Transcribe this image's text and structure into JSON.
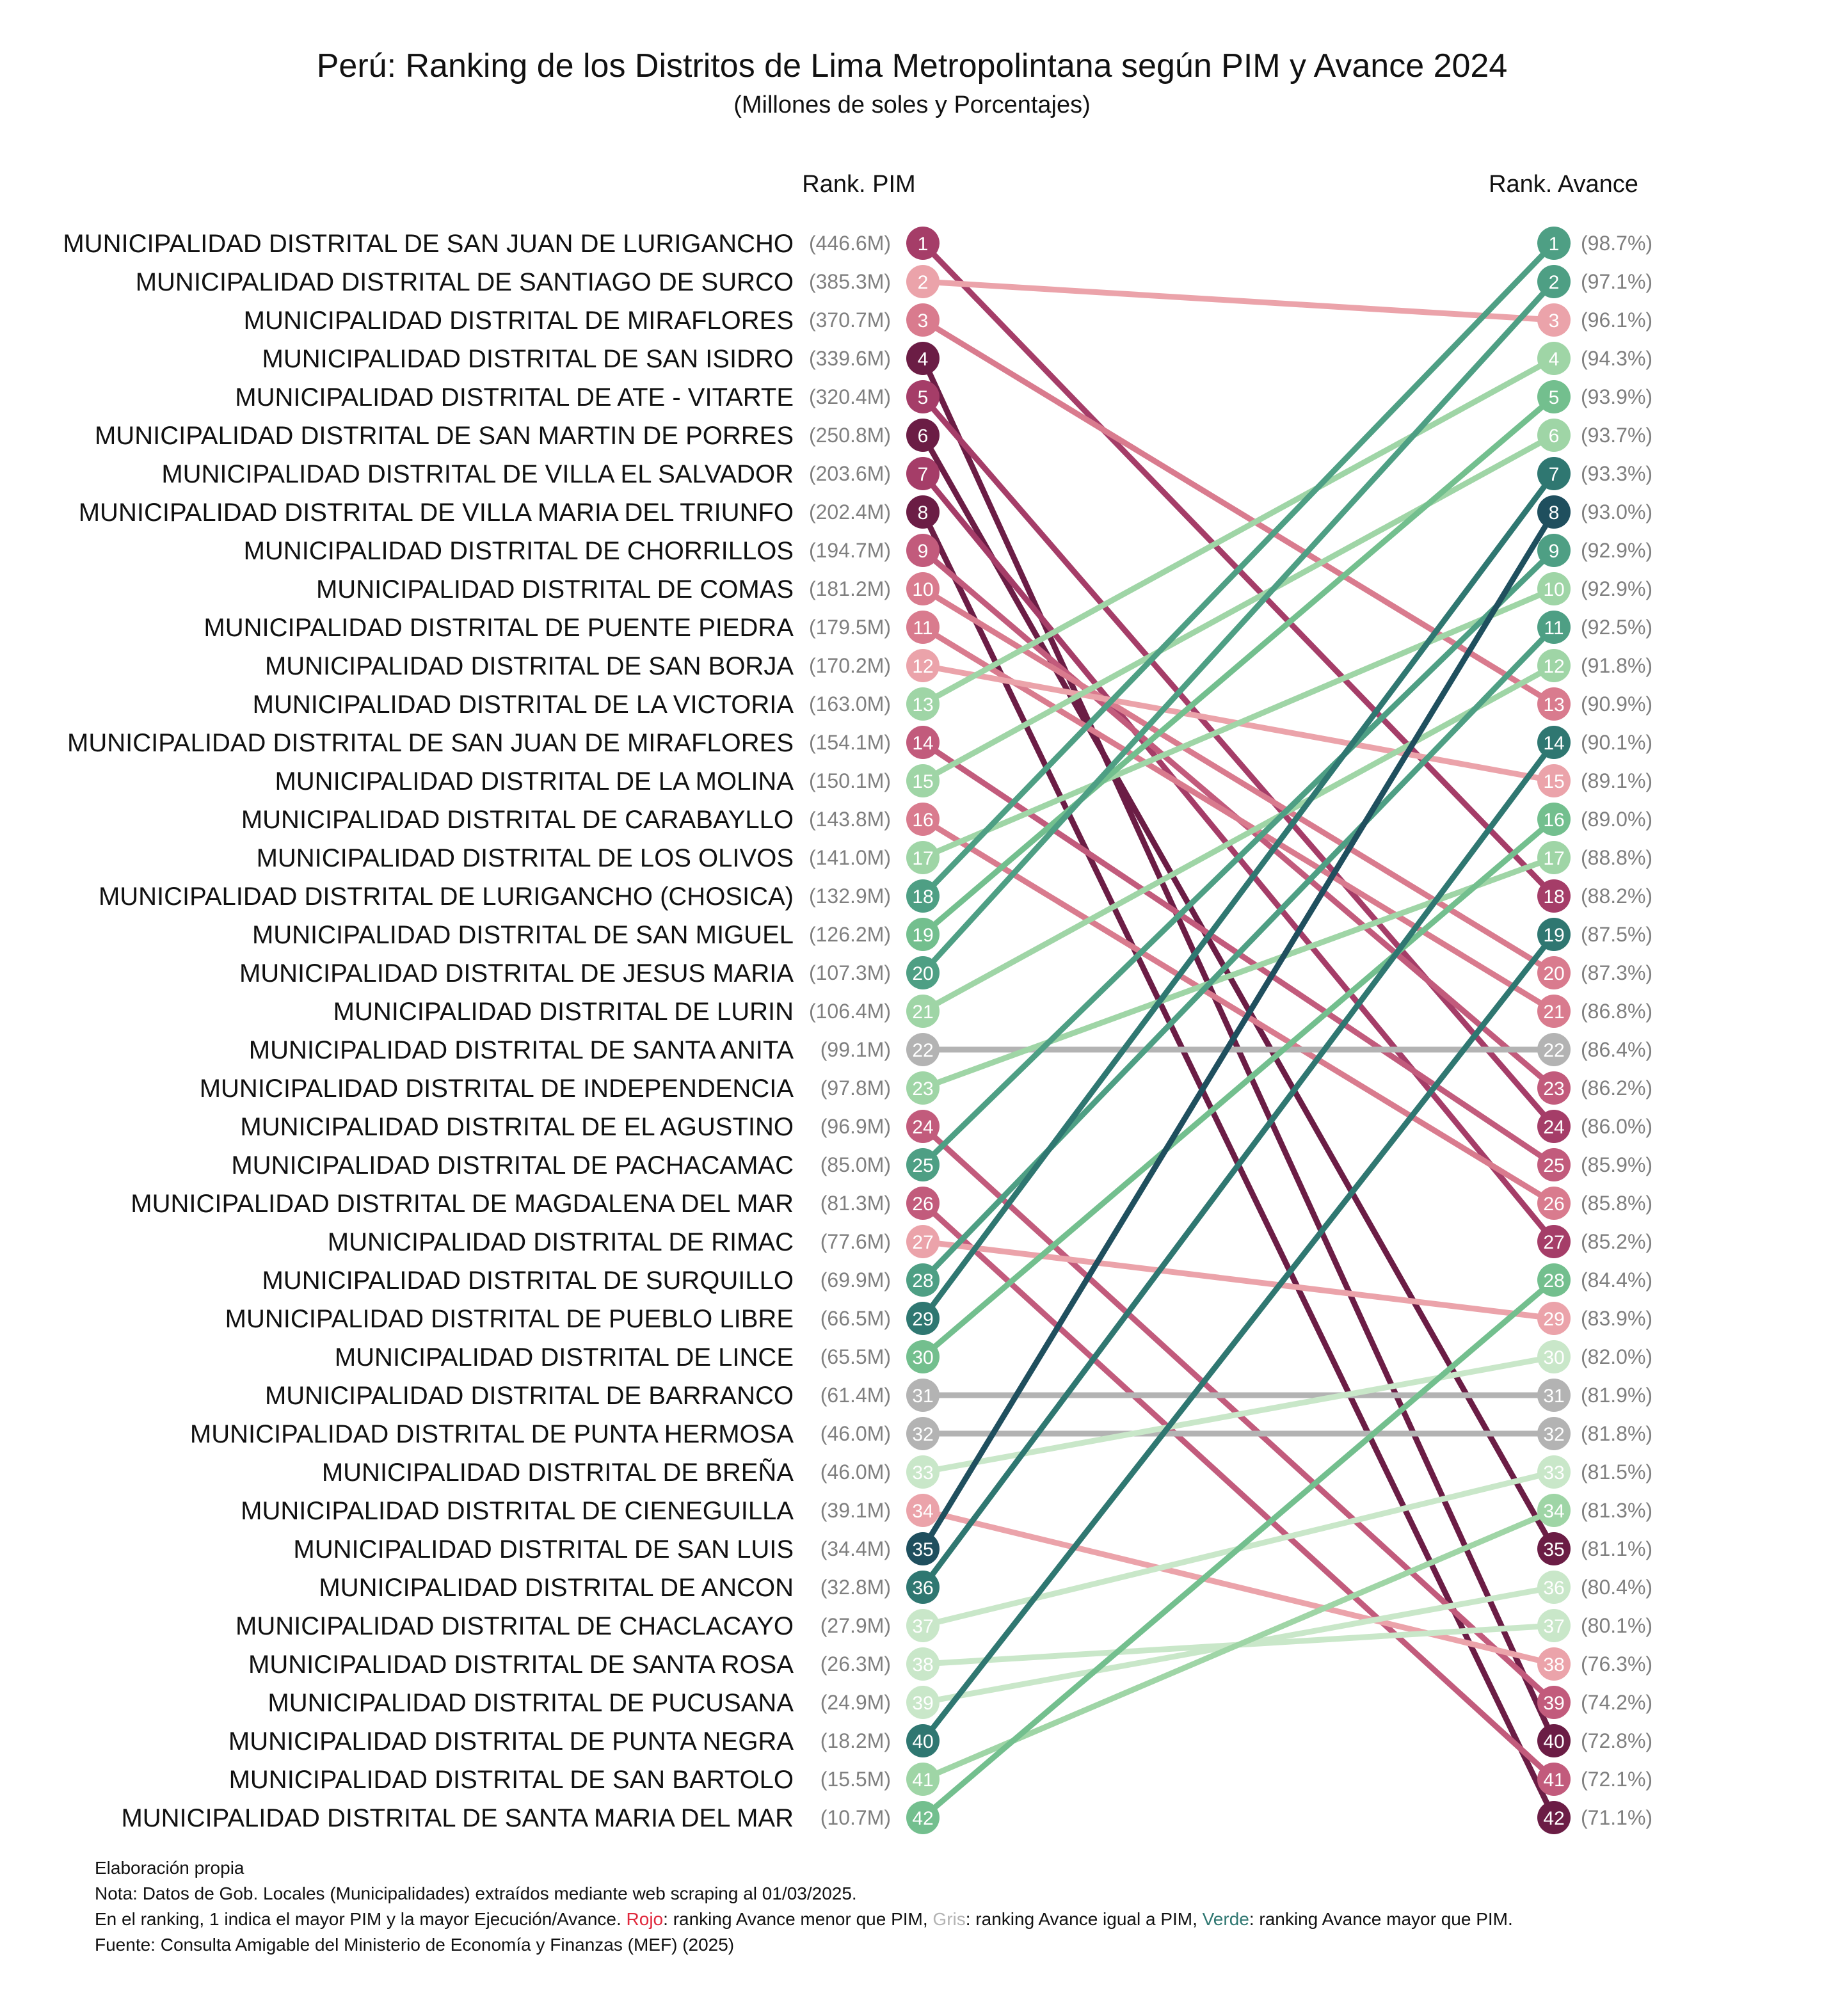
{
  "chart_data": {
    "type": "slope",
    "title": "Perú: Ranking de los Distritos de Lima Metropolintana según PIM y Avance 2024",
    "subtitle": "(Millones de soles y Porcentajes)",
    "left_header": "Rank. PIM",
    "right_header": "Rank. Avance",
    "districts": [
      {
        "name": "MUNICIPALIDAD DISTRITAL DE SAN JUAN DE LURIGANCHO",
        "pim_rank": 1,
        "pim": "(446.6M)",
        "avance_rank": 18
      },
      {
        "name": "MUNICIPALIDAD DISTRITAL DE SANTIAGO DE SURCO",
        "pim_rank": 2,
        "pim": "(385.3M)",
        "avance_rank": 3
      },
      {
        "name": "MUNICIPALIDAD DISTRITAL DE MIRAFLORES",
        "pim_rank": 3,
        "pim": "(370.7M)",
        "avance_rank": 13
      },
      {
        "name": "MUNICIPALIDAD DISTRITAL DE SAN ISIDRO",
        "pim_rank": 4,
        "pim": "(339.6M)",
        "avance_rank": 40
      },
      {
        "name": "MUNICIPALIDAD DISTRITAL DE ATE - VITARTE",
        "pim_rank": 5,
        "pim": "(320.4M)",
        "avance_rank": 24
      },
      {
        "name": "MUNICIPALIDAD DISTRITAL DE SAN MARTIN DE PORRES",
        "pim_rank": 6,
        "pim": "(250.8M)",
        "avance_rank": 35
      },
      {
        "name": "MUNICIPALIDAD DISTRITAL DE VILLA EL SALVADOR",
        "pim_rank": 7,
        "pim": "(203.6M)",
        "avance_rank": 27
      },
      {
        "name": "MUNICIPALIDAD DISTRITAL DE VILLA MARIA DEL TRIUNFO",
        "pim_rank": 8,
        "pim": "(202.4M)",
        "avance_rank": 42
      },
      {
        "name": "MUNICIPALIDAD DISTRITAL DE CHORRILLOS",
        "pim_rank": 9,
        "pim": "(194.7M)",
        "avance_rank": 23
      },
      {
        "name": "MUNICIPALIDAD DISTRITAL DE COMAS",
        "pim_rank": 10,
        "pim": "(181.2M)",
        "avance_rank": 20
      },
      {
        "name": "MUNICIPALIDAD DISTRITAL DE PUENTE PIEDRA",
        "pim_rank": 11,
        "pim": "(179.5M)",
        "avance_rank": 21
      },
      {
        "name": "MUNICIPALIDAD DISTRITAL DE SAN BORJA",
        "pim_rank": 12,
        "pim": "(170.2M)",
        "avance_rank": 15
      },
      {
        "name": "MUNICIPALIDAD DISTRITAL DE LA VICTORIA",
        "pim_rank": 13,
        "pim": "(163.0M)",
        "avance_rank": 4
      },
      {
        "name": "MUNICIPALIDAD DISTRITAL DE SAN JUAN DE MIRAFLORES",
        "pim_rank": 14,
        "pim": "(154.1M)",
        "avance_rank": 25
      },
      {
        "name": "MUNICIPALIDAD DISTRITAL DE LA MOLINA",
        "pim_rank": 15,
        "pim": "(150.1M)",
        "avance_rank": 6
      },
      {
        "name": "MUNICIPALIDAD DISTRITAL DE CARABAYLLO",
        "pim_rank": 16,
        "pim": "(143.8M)",
        "avance_rank": 26
      },
      {
        "name": "MUNICIPALIDAD DISTRITAL DE LOS OLIVOS",
        "pim_rank": 17,
        "pim": "(141.0M)",
        "avance_rank": 10
      },
      {
        "name": "MUNICIPALIDAD DISTRITAL DE LURIGANCHO (CHOSICA)",
        "pim_rank": 18,
        "pim": "(132.9M)",
        "avance_rank": 1
      },
      {
        "name": "MUNICIPALIDAD DISTRITAL DE SAN MIGUEL",
        "pim_rank": 19,
        "pim": "(126.2M)",
        "avance_rank": 5
      },
      {
        "name": "MUNICIPALIDAD DISTRITAL DE JESUS MARIA",
        "pim_rank": 20,
        "pim": "(107.3M)",
        "avance_rank": 2
      },
      {
        "name": "MUNICIPALIDAD DISTRITAL DE LURIN",
        "pim_rank": 21,
        "pim": "(106.4M)",
        "avance_rank": 12
      },
      {
        "name": "MUNICIPALIDAD DISTRITAL DE SANTA ANITA",
        "pim_rank": 22,
        "pim": "(99.1M)",
        "avance_rank": 22
      },
      {
        "name": "MUNICIPALIDAD DISTRITAL DE INDEPENDENCIA",
        "pim_rank": 23,
        "pim": "(97.8M)",
        "avance_rank": 17
      },
      {
        "name": "MUNICIPALIDAD DISTRITAL DE EL AGUSTINO",
        "pim_rank": 24,
        "pim": "(96.9M)",
        "avance_rank": 39
      },
      {
        "name": "MUNICIPALIDAD DISTRITAL DE PACHACAMAC",
        "pim_rank": 25,
        "pim": "(85.0M)",
        "avance_rank": 9
      },
      {
        "name": "MUNICIPALIDAD DISTRITAL DE MAGDALENA DEL MAR",
        "pim_rank": 26,
        "pim": "(81.3M)",
        "avance_rank": 41
      },
      {
        "name": "MUNICIPALIDAD DISTRITAL DE RIMAC",
        "pim_rank": 27,
        "pim": "(77.6M)",
        "avance_rank": 29
      },
      {
        "name": "MUNICIPALIDAD DISTRITAL DE SURQUILLO",
        "pim_rank": 28,
        "pim": "(69.9M)",
        "avance_rank": 11
      },
      {
        "name": "MUNICIPALIDAD DISTRITAL DE PUEBLO LIBRE",
        "pim_rank": 29,
        "pim": "(66.5M)",
        "avance_rank": 7
      },
      {
        "name": "MUNICIPALIDAD DISTRITAL DE LINCE",
        "pim_rank": 30,
        "pim": "(65.5M)",
        "avance_rank": 16
      },
      {
        "name": "MUNICIPALIDAD DISTRITAL DE BARRANCO",
        "pim_rank": 31,
        "pim": "(61.4M)",
        "avance_rank": 31
      },
      {
        "name": "MUNICIPALIDAD DISTRITAL DE PUNTA HERMOSA",
        "pim_rank": 32,
        "pim": "(46.0M)",
        "avance_rank": 32
      },
      {
        "name": "MUNICIPALIDAD DISTRITAL DE BREÑA",
        "pim_rank": 33,
        "pim": "(46.0M)",
        "avance_rank": 30
      },
      {
        "name": "MUNICIPALIDAD DISTRITAL DE CIENEGUILLA",
        "pim_rank": 34,
        "pim": "(39.1M)",
        "avance_rank": 38
      },
      {
        "name": "MUNICIPALIDAD DISTRITAL DE SAN LUIS",
        "pim_rank": 35,
        "pim": "(34.4M)",
        "avance_rank": 8
      },
      {
        "name": "MUNICIPALIDAD DISTRITAL DE ANCON",
        "pim_rank": 36,
        "pim": "(32.8M)",
        "avance_rank": 14
      },
      {
        "name": "MUNICIPALIDAD DISTRITAL DE CHACLACAYO",
        "pim_rank": 37,
        "pim": "(27.9M)",
        "avance_rank": 33
      },
      {
        "name": "MUNICIPALIDAD DISTRITAL DE SANTA ROSA",
        "pim_rank": 38,
        "pim": "(26.3M)",
        "avance_rank": 37
      },
      {
        "name": "MUNICIPALIDAD DISTRITAL DE PUCUSANA",
        "pim_rank": 39,
        "pim": "(24.9M)",
        "avance_rank": 36
      },
      {
        "name": "MUNICIPALIDAD DISTRITAL DE PUNTA NEGRA",
        "pim_rank": 40,
        "pim": "(18.2M)",
        "avance_rank": 19
      },
      {
        "name": "MUNICIPALIDAD DISTRITAL DE SAN BARTOLO",
        "pim_rank": 41,
        "pim": "(15.5M)",
        "avance_rank": 34
      },
      {
        "name": "MUNICIPALIDAD DISTRITAL DE SANTA MARIA DEL MAR",
        "pim_rank": 42,
        "pim": "(10.7M)",
        "avance_rank": 28
      }
    ],
    "avance_values": [
      "(98.7%)",
      "(97.1%)",
      "(96.1%)",
      "(94.3%)",
      "(93.9%)",
      "(93.7%)",
      "(93.3%)",
      "(93.0%)",
      "(92.9%)",
      "(92.9%)",
      "(92.5%)",
      "(91.8%)",
      "(90.9%)",
      "(90.1%)",
      "(89.1%)",
      "(89.0%)",
      "(88.8%)",
      "(88.2%)",
      "(87.5%)",
      "(87.3%)",
      "(86.8%)",
      "(86.4%)",
      "(86.2%)",
      "(86.0%)",
      "(85.9%)",
      "(85.8%)",
      "(85.2%)",
      "(84.4%)",
      "(83.9%)",
      "(82.0%)",
      "(81.9%)",
      "(81.8%)",
      "(81.5%)",
      "(81.3%)",
      "(81.1%)",
      "(80.4%)",
      "(80.1%)",
      "(76.3%)",
      "(74.2%)",
      "(72.8%)",
      "(72.1%)",
      "(71.1%)"
    ],
    "rank_colors": [
      "#6b1d45",
      "#8a2a57",
      "#a53d68",
      "#c25b7c",
      "#d97b8e",
      "#eba3aa",
      "#fbc6c4",
      "#c9e7c9",
      "#9fd5a6",
      "#73bf8e",
      "#4e9f84",
      "#2f7771",
      "#1f4f5e"
    ],
    "neutral_color": "#b3b3b3"
  },
  "footer": {
    "line1": "Elaboración propia",
    "line2": "Nota: Datos de Gob. Locales (Municipalidades) extraídos mediante web scraping al 01/03/2025.",
    "line3_a": "En el ranking, 1 indica el mayor PIM y la mayor Ejecución/Avance. ",
    "line3_rojo": "Rojo",
    "line3_b": ": ranking Avance menor que PIM, ",
    "line3_gris": "Gris",
    "line3_c": ": ranking Avance igual a PIM, ",
    "line3_verde": "Verde",
    "line3_d": ": ranking Avance mayor que PIM.",
    "line4": "Fuente: Consulta Amigable del Ministerio de Economía y Finanzas (MEF) (2025)",
    "color_rojo": "#e0283c",
    "color_gris": "#b3b3b3",
    "color_verde": "#2f7771"
  }
}
